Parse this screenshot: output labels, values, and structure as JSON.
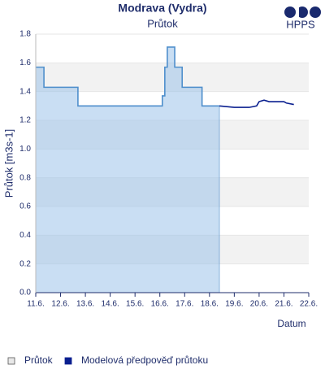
{
  "chart_data": {
    "type": "line",
    "title": "Modrava (Vydra)",
    "subtitle": "Průtok",
    "logo_text": "HPPS",
    "y_label": "Průtok [m3s-1]",
    "x_label": "Datum",
    "ylim": [
      0,
      1.8
    ],
    "yticks": [
      {
        "value": 0,
        "label": "0.0"
      },
      0.2,
      0.4,
      0.6,
      0.8,
      {
        "value": 1,
        "label": "1.0"
      },
      1.2,
      1.4,
      1.6,
      1.8
    ],
    "xlim": [
      11,
      22
    ],
    "xticks": [
      {
        "value": 11,
        "label": "11.6."
      },
      {
        "value": 12,
        "label": "12.6."
      },
      {
        "value": 13,
        "label": "13.6."
      },
      {
        "value": 14,
        "label": "14.6."
      },
      {
        "value": 15,
        "label": "15.6."
      },
      {
        "value": 16,
        "label": "16.6."
      },
      {
        "value": 17,
        "label": "17.6."
      },
      {
        "value": 18,
        "label": "18.6."
      },
      {
        "value": 19,
        "label": "19.6."
      },
      {
        "value": 20,
        "label": "20.6."
      },
      {
        "value": 21,
        "label": "21.6."
      },
      {
        "value": 22,
        "label": "22.6."
      }
    ],
    "grid_bands": true,
    "series": [
      {
        "name": "Průtok",
        "color": "#4f8fcc",
        "fill": "area",
        "area_color": "#9cc3ea",
        "x": [
          11.0,
          11.33,
          11.33,
          12.7,
          12.7,
          16.1,
          16.1,
          16.2,
          16.2,
          16.3,
          16.3,
          16.6,
          16.6,
          16.9,
          16.9,
          17.7,
          17.7,
          18.4
        ],
        "values": [
          1.57,
          1.57,
          1.43,
          1.43,
          1.3,
          1.3,
          1.37,
          1.37,
          1.57,
          1.57,
          1.71,
          1.71,
          1.57,
          1.57,
          1.43,
          1.43,
          1.3,
          1.3
        ]
      },
      {
        "name": "Modelová předpověď průtoku",
        "color": "#0a1f8f",
        "x": [
          18.4,
          19.0,
          19.6,
          19.9,
          20.0,
          20.2,
          20.4,
          21.0,
          21.1,
          21.4
        ],
        "values": [
          1.3,
          1.29,
          1.29,
          1.3,
          1.33,
          1.34,
          1.33,
          1.33,
          1.32,
          1.31
        ]
      }
    ]
  }
}
